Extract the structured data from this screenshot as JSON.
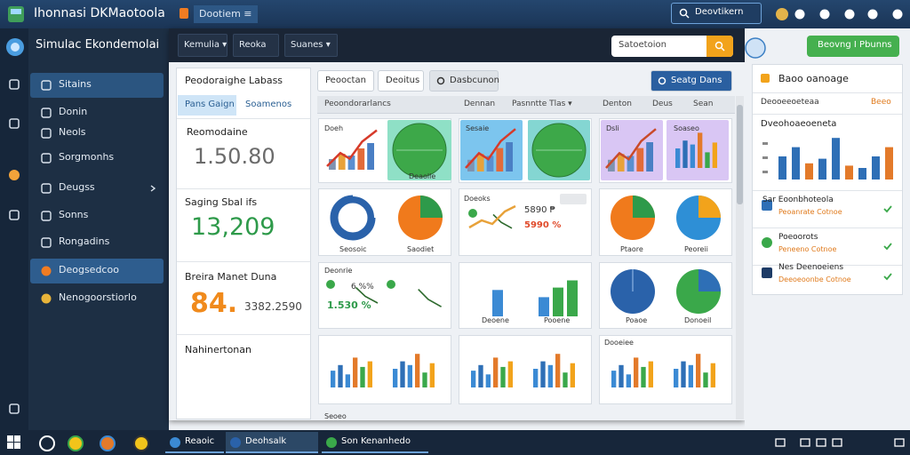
{
  "app_bar": {
    "title": "Ihonnasi DKMaotoola",
    "tab": "Dootiem ≡",
    "search": "Deovtikern"
  },
  "sidebar": {
    "title": "Simulac Ekondemolai",
    "items": [
      "Sitains",
      "Donin",
      "Neols",
      "Sorgmonhs",
      "Deugss",
      "Sonns",
      "Rongadins",
      "Deogsedcoo",
      "Nenogoorstiorlo"
    ]
  },
  "window": {
    "tabs": [
      "Kemulia ▾",
      "Reoka",
      "Suanes ▾"
    ],
    "search": "Satoetoion",
    "toolbar": [
      "Peooctan",
      "Deoitus",
      "Dasbcunon",
      "Seatg Dans"
    ],
    "summary": {
      "title": "Peodoraighe Labass",
      "tabs": [
        "Pans Gaign",
        "Soamenos"
      ],
      "stats": [
        {
          "label": "Reomodaine",
          "value": "1.50.80"
        },
        {
          "label": "Saging Sbal ifs",
          "value": "13,209"
        },
        {
          "label": "Breira Manet Duna",
          "value": "84.",
          "sub": "3382.2590"
        },
        {
          "label": "Nahinertonan"
        }
      ]
    },
    "columns": [
      "Peoondorarlancs",
      "Dennan",
      "Pasnntte Tlas ▾",
      "Denton",
      "Deus",
      "Sean"
    ],
    "cards": [
      {
        "label": "Doeh",
        "captions": [
          "Deaolle"
        ]
      },
      {
        "captions": [
          "Sesaie"
        ]
      },
      {
        "captions": [
          "Dsli",
          "Soaseo"
        ]
      },
      {
        "captions": [
          "Seosoic",
          "Saodiet"
        ]
      },
      {
        "label": "Doeoks",
        "lines": [
          "5890 ₱",
          "5990 %"
        ]
      },
      {
        "captions": [
          "Ptaore",
          "Peoreii"
        ]
      },
      {
        "label": "Deonrie",
        "lines": [
          "6 %%",
          "1.530 %"
        ]
      },
      {
        "captions": [
          "Deoene",
          "Pooene"
        ]
      },
      {
        "captions": [
          "Poaoe",
          "Donoeil"
        ]
      },
      {
        "label": "Seoeo"
      },
      {
        "label": "Dooeiee"
      }
    ]
  },
  "right_panel": {
    "button": "Beovng I Pbunns",
    "title": "Baoo oanoage",
    "table_head": [
      "Deooeeoeteaa",
      "Beeo"
    ],
    "chart_title": "Dveohoaeoeneta",
    "list": [
      {
        "title": "Sar Eoonbhoteola",
        "sub": "Peoanrate Cotnoe"
      },
      {
        "title": "Poeoorots",
        "sub": "Peneeno Cotnoe"
      },
      {
        "title": "Nes Deenoeiens",
        "sub": "Deeoeoonbe Cotnoe"
      }
    ]
  },
  "taskbar": {
    "tasks": [
      "Reaoic",
      "Deohsalk",
      "Son Kenanhedo"
    ]
  }
}
